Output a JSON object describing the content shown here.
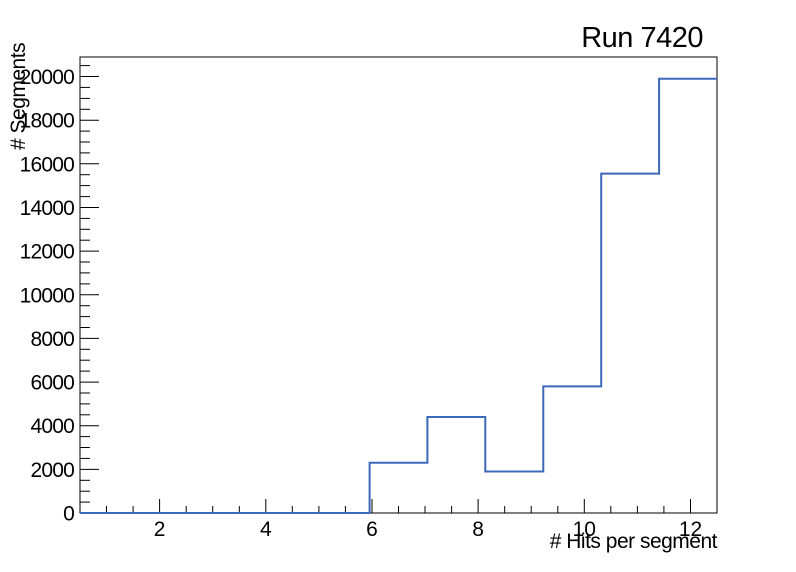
{
  "page": {
    "background": "#ffffff"
  },
  "chart_data": {
    "type": "bar",
    "subtype": "step-histogram",
    "title": "Run 7420",
    "xlabel": "# Hits per segment",
    "ylabel": "# Segments",
    "xlim": [
      0.5,
      12.5
    ],
    "ylim": [
      0,
      20895
    ],
    "bin_edges": [
      0.5,
      1.591,
      2.682,
      3.773,
      4.864,
      5.955,
      7.045,
      8.136,
      9.227,
      10.318,
      11.409,
      12.5
    ],
    "counts": [
      0,
      0,
      0,
      0,
      0,
      2300,
      4400,
      1900,
      5800,
      15550,
      19900
    ],
    "x_major_ticks": [
      2,
      4,
      6,
      8,
      10,
      12
    ],
    "x_minor_tick_step": 0.5,
    "y_major_ticks": [
      0,
      2000,
      4000,
      6000,
      8000,
      10000,
      12000,
      14000,
      16000,
      18000,
      20000
    ],
    "y_minor_tick_step": 500,
    "grid": false,
    "legend": false,
    "line_color": "#3b68b8",
    "frame_color": "#000000",
    "text_color": "#000000"
  }
}
